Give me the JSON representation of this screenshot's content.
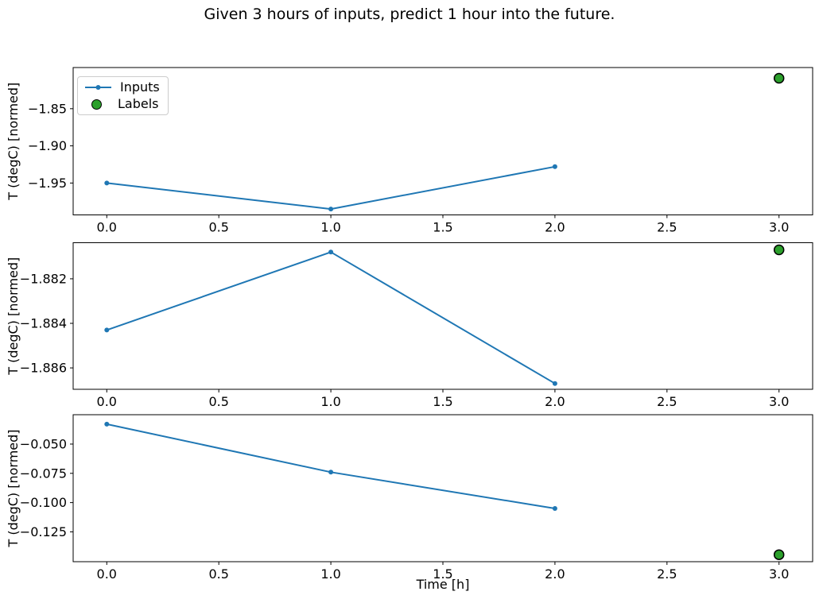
{
  "title": "Given 3 hours of inputs, predict 1 hour into the future.",
  "colors": {
    "inputs_line": "#1f77b4",
    "labels_fill": "#2ca02c",
    "labels_edge": "#000000",
    "axes": "#000000",
    "tick_text": "#000000",
    "legend_border": "#cccccc",
    "background": "#ffffff"
  },
  "legend": {
    "position": "upper-left-subplot-1",
    "items": [
      {
        "label": "Inputs",
        "marker": "line-with-dot"
      },
      {
        "label": "Labels",
        "marker": "green-circle"
      }
    ]
  },
  "chart_data": {
    "type": "line",
    "title": "Given 3 hours of inputs, predict 1 hour into the future.",
    "xlabel": "Time [h]",
    "grid": false,
    "subplots": [
      {
        "name": "subplot-1",
        "ylabel": "T (degC) [normed]",
        "xlim": [
          -0.15,
          3.15
        ],
        "ylim": [
          -1.9929,
          -1.7946
        ],
        "xticks": [
          0.0,
          0.5,
          1.0,
          1.5,
          2.0,
          2.5,
          3.0
        ],
        "xtick_labels": [
          "0.0",
          "0.5",
          "1.0",
          "1.5",
          "2.0",
          "2.5",
          "3.0"
        ],
        "yticks": [
          -1.85,
          -1.9,
          -1.95
        ],
        "ytick_labels": [
          "−1.85",
          "−1.90",
          "−1.95"
        ],
        "inputs": {
          "x": [
            0,
            1,
            2
          ],
          "y": [
            -1.95,
            -1.985,
            -1.928
          ]
        },
        "labels": {
          "x": [
            3
          ],
          "y": [
            -1.809
          ]
        }
      },
      {
        "name": "subplot-2",
        "ylabel": "T (degC) [normed]",
        "xlim": [
          -0.15,
          3.15
        ],
        "ylim": [
          -1.88696,
          -1.88038
        ],
        "xticks": [
          0.0,
          0.5,
          1.0,
          1.5,
          2.0,
          2.5,
          3.0
        ],
        "xtick_labels": [
          "0.0",
          "0.5",
          "1.0",
          "1.5",
          "2.0",
          "2.5",
          "3.0"
        ],
        "yticks": [
          -1.882,
          -1.884,
          -1.886
        ],
        "ytick_labels": [
          "−1.882",
          "−1.884",
          "−1.886"
        ],
        "inputs": {
          "x": [
            0,
            1,
            2
          ],
          "y": [
            -1.8843,
            -1.8808,
            -1.8867
          ]
        },
        "labels": {
          "x": [
            3
          ],
          "y": [
            -1.8807
          ]
        }
      },
      {
        "name": "subplot-3",
        "ylabel": "T (degC) [normed]",
        "xlim": [
          -0.15,
          3.15
        ],
        "ylim": [
          -0.1505,
          -0.0249
        ],
        "xticks": [
          0.0,
          0.5,
          1.0,
          1.5,
          2.0,
          2.5,
          3.0
        ],
        "xtick_labels": [
          "0.0",
          "0.5",
          "1.0",
          "1.5",
          "2.0",
          "2.5",
          "3.0"
        ],
        "yticks": [
          -0.05,
          -0.075,
          -0.1,
          -0.125
        ],
        "ytick_labels": [
          "−0.050",
          "−0.075",
          "−0.100",
          "−0.125"
        ],
        "inputs": {
          "x": [
            0,
            1,
            2
          ],
          "y": [
            -0.033,
            -0.074,
            -0.105
          ]
        },
        "labels": {
          "x": [
            3
          ],
          "y": [
            -0.1445
          ]
        }
      }
    ]
  }
}
